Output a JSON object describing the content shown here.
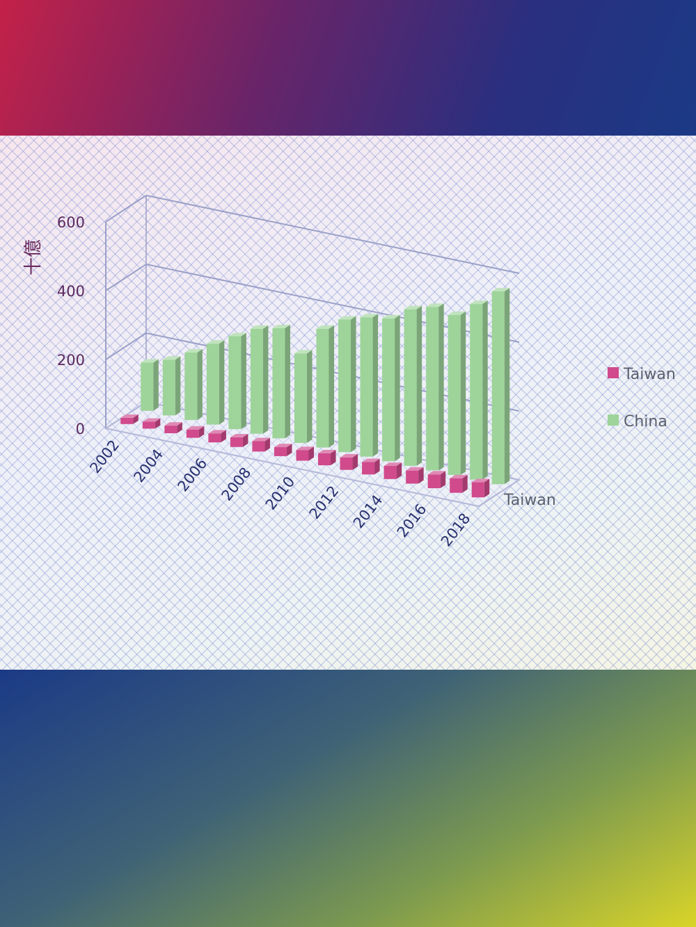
{
  "chart_data": {
    "type": "bar",
    "style": "3d-clustered",
    "ylabel": "十億",
    "ylim": [
      0,
      600
    ],
    "y_ticks": [
      "0",
      "200",
      "400",
      "600"
    ],
    "x_tick_labels": [
      "2002",
      "2004",
      "2006",
      "2008",
      "2010",
      "2012",
      "2014",
      "2016",
      "2018"
    ],
    "x": [
      2002,
      2003,
      2004,
      2005,
      2006,
      2007,
      2008,
      2009,
      2010,
      2011,
      2012,
      2013,
      2014,
      2015,
      2016,
      2017,
      2018
    ],
    "depth_axis_label": "Taiwan",
    "series": [
      {
        "name": "Taiwan",
        "color": "#d04a8c",
        "values": [
          18,
          20,
          22,
          24,
          26,
          28,
          30,
          26,
          31,
          35,
          36,
          36,
          38,
          38,
          40,
          42,
          44
        ]
      },
      {
        "name": "China",
        "color": "#9ed49a",
        "values": [
          140,
          162,
          196,
          235,
          270,
          305,
          320,
          260,
          345,
          385,
          405,
          415,
          455,
          475,
          465,
          510,
          560
        ]
      }
    ],
    "legend_position": "right",
    "grid": true
  }
}
